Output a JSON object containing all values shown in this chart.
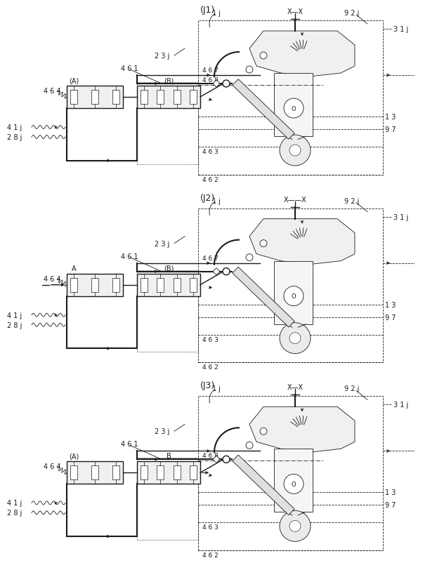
{
  "bg_color": "#ffffff",
  "lc": "#1a1a1a",
  "panel_labels": [
    "(J1)",
    "(J2)",
    "(J3)"
  ],
  "lw": 1.0,
  "lw2": 1.5,
  "lw_thin": 0.6,
  "fs": 7.0,
  "fs_big": 9.0,
  "panels": [
    {
      "label": "(J1)",
      "has_467": true,
      "has_468": true,
      "valve_A_label": "(A)",
      "valve_B_label": "(B)",
      "arrow_into_A": false,
      "arrow_out_B": false,
      "top_pipe_solid": true,
      "xline_label": "X—X"
    },
    {
      "label": "(J2)",
      "has_467": true,
      "has_468": false,
      "valve_A_label": "A",
      "valve_B_label": "(B)",
      "arrow_into_A": true,
      "arrow_out_B": false,
      "top_pipe_solid": false,
      "xline_label": "X——X"
    },
    {
      "label": "(J3)",
      "has_467": false,
      "has_468": true,
      "valve_A_label": "(A)",
      "valve_B_label": "B",
      "arrow_into_A": false,
      "arrow_out_B": true,
      "top_pipe_solid": false,
      "xline_label": "X—X"
    }
  ]
}
